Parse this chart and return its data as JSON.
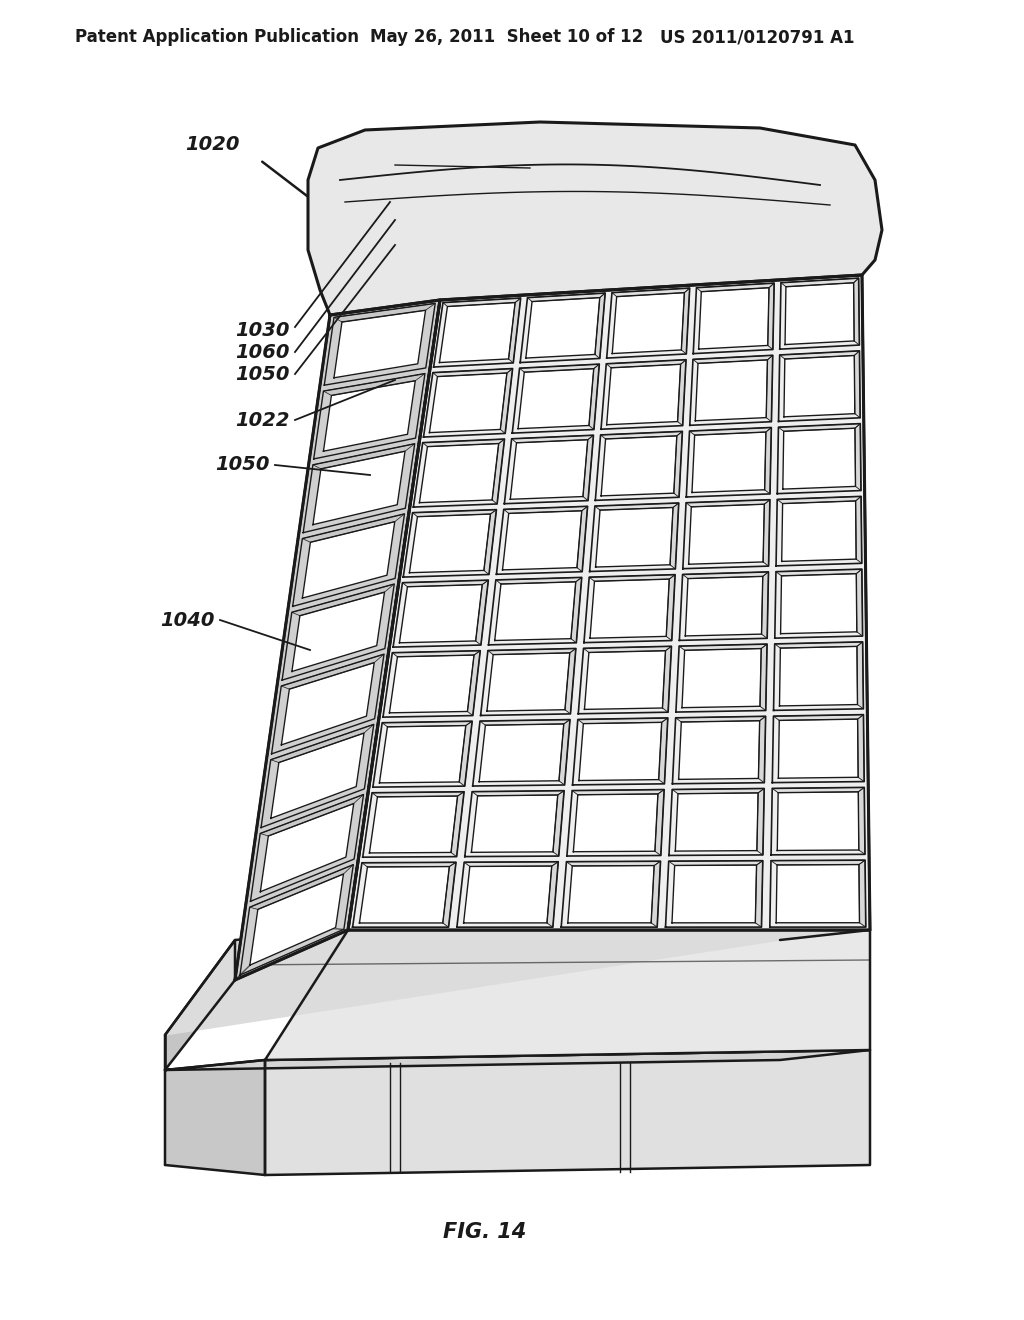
{
  "title_left": "Patent Application Publication",
  "title_mid": "May 26, 2011  Sheet 10 of 12",
  "title_right": "US 2011/0120791 A1",
  "fig_label": "FIG. 14",
  "label_1020": "1020",
  "label_1030": "1030",
  "label_1060": "1060",
  "label_1050a": "1050",
  "label_1022": "1022",
  "label_1050b": "1050",
  "label_1040": "1040",
  "bg_color": "#ffffff",
  "line_color": "#1a1a1a",
  "title_fontsize": 12,
  "fig_label_fontsize": 15
}
